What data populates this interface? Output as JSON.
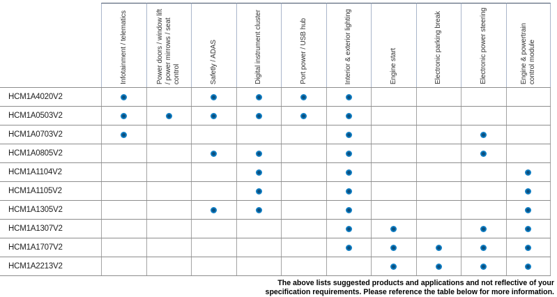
{
  "colors": {
    "dot_outer": "#0f7dc3",
    "dot_core": "#0a4e7d",
    "header_top_border": "#3f4e66",
    "header_side_border": "#a9b5ca",
    "row_line": "#8c8c8c",
    "column_line": "#a3a3a3"
  },
  "table": {
    "columns": [
      {
        "label": "Infotainment / telematics"
      },
      {
        "label": "Power doors / window lift\n/ power mirrows / seat\ncontrol"
      },
      {
        "label": "Safetly / ADAS"
      },
      {
        "label": "Digital instrument cluster"
      },
      {
        "label": "Port power / USB hub"
      },
      {
        "label": "Interior & exterior lighting"
      },
      {
        "label": "Engine start"
      },
      {
        "label": "Electronic parking break"
      },
      {
        "label": "Electronic power steering"
      },
      {
        "label": "Engine & powertrain\ncontrol module"
      }
    ],
    "rows": [
      {
        "part": "HCM1A4020V2",
        "dots": [
          1,
          0,
          1,
          1,
          1,
          1,
          0,
          0,
          0,
          0
        ]
      },
      {
        "part": "HCM1A0503V2",
        "dots": [
          1,
          1,
          1,
          1,
          1,
          1,
          0,
          0,
          0,
          0
        ]
      },
      {
        "part": "HCM1A0703V2",
        "dots": [
          1,
          0,
          0,
          0,
          0,
          1,
          0,
          0,
          1,
          0
        ]
      },
      {
        "part": "HCM1A0805V2",
        "dots": [
          0,
          0,
          1,
          1,
          0,
          1,
          0,
          0,
          1,
          0
        ]
      },
      {
        "part": "HCM1A1104V2",
        "dots": [
          0,
          0,
          0,
          1,
          0,
          1,
          0,
          0,
          0,
          1
        ]
      },
      {
        "part": "HCM1A1105V2",
        "dots": [
          0,
          0,
          0,
          1,
          0,
          1,
          0,
          0,
          0,
          1
        ]
      },
      {
        "part": "HCM1A1305V2",
        "dots": [
          0,
          0,
          1,
          1,
          0,
          1,
          0,
          0,
          0,
          1
        ]
      },
      {
        "part": "HCM1A1307V2",
        "dots": [
          0,
          0,
          0,
          0,
          0,
          1,
          1,
          0,
          1,
          1
        ]
      },
      {
        "part": "HCM1A1707V2",
        "dots": [
          0,
          0,
          0,
          0,
          0,
          1,
          1,
          1,
          1,
          1
        ]
      },
      {
        "part": "HCM1A2213V2",
        "dots": [
          0,
          0,
          0,
          0,
          0,
          0,
          1,
          1,
          1,
          1
        ]
      }
    ]
  },
  "footer": {
    "line1": "The above lists suggested products and applications and not reflective of your",
    "line2": "specification requirements. Please reference the table below for more information."
  }
}
